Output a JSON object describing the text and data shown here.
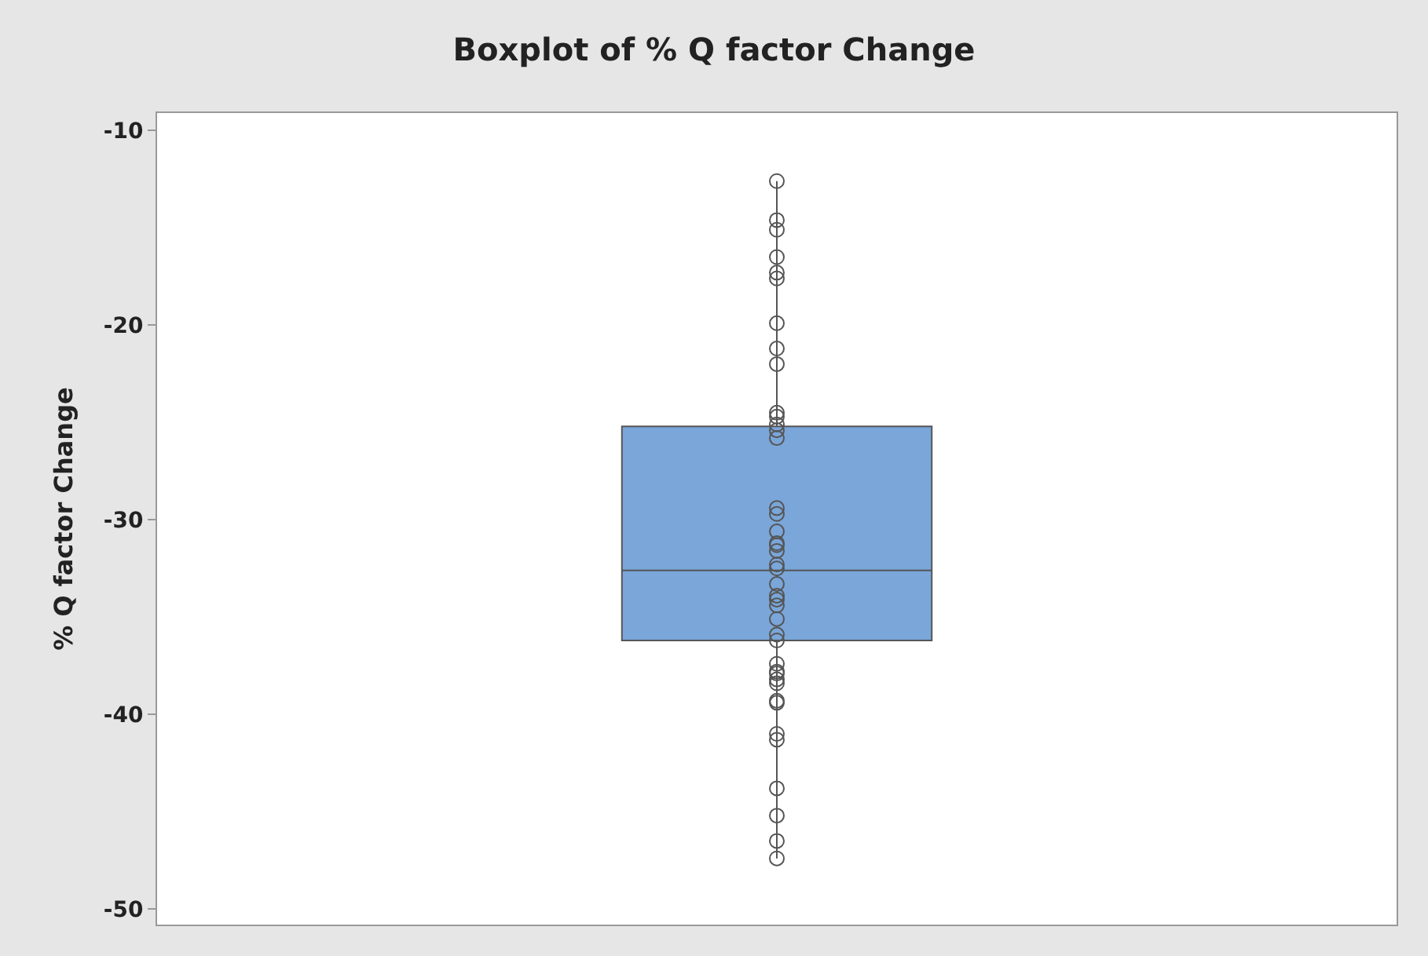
{
  "chart_data": {
    "type": "box",
    "title": "Boxplot of % Q factor Change",
    "ylabel": "% Q factor Change",
    "categories": [
      null
    ],
    "boxes": [
      {
        "low": -47.4,
        "q1": -36.2,
        "median": -32.6,
        "q3": -25.2,
        "high": -12.6
      }
    ],
    "color": "#7aa6d9",
    "series": [
      {
        "type": "scatter",
        "color": "#555555",
        "marker": "circle",
        "x": [
          null,
          null,
          null,
          null,
          null,
          null,
          null,
          null,
          null,
          null,
          null,
          null,
          null,
          null,
          null,
          null,
          null,
          null,
          null,
          null,
          null,
          null,
          null,
          null,
          null,
          null,
          null,
          null,
          null,
          null,
          null,
          null,
          null,
          null,
          null,
          null,
          null,
          null,
          null,
          null,
          null,
          null
        ],
        "values": [
          -12.6,
          -14.6,
          -15.1,
          -16.5,
          -17.3,
          -17.6,
          -19.9,
          -21.2,
          -22.0,
          -24.5,
          -24.7,
          -25.1,
          -25.4,
          -25.8,
          -29.4,
          -29.7,
          -30.6,
          -31.2,
          -31.3,
          -31.6,
          -32.3,
          -32.5,
          -33.3,
          -33.9,
          -34.1,
          -34.4,
          -35.1,
          -35.9,
          -36.2,
          -37.4,
          -37.8,
          -37.9,
          -38.2,
          -38.4,
          -39.3,
          -39.4,
          -41.0,
          -41.3,
          -43.8,
          -45.2,
          -46.5,
          -47.4
        ]
      }
    ],
    "ylim": [
      -50.8,
      -9.1
    ],
    "yticks": [
      -10,
      -20,
      -30,
      -40,
      -50
    ]
  }
}
